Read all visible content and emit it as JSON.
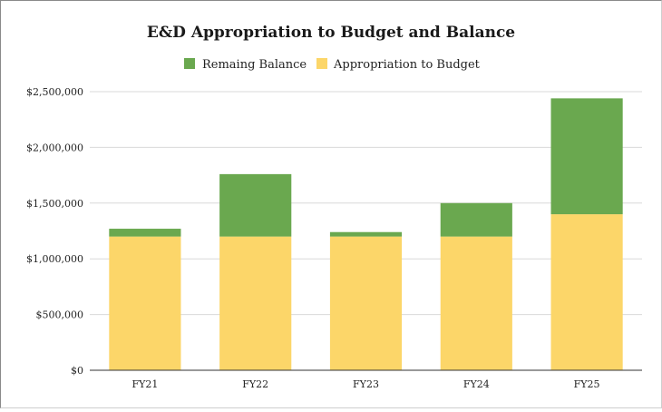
{
  "chart_data": {
    "type": "bar",
    "stacked": true,
    "title": "E&D Appropriation to Budget and Balance",
    "xlabel": "",
    "ylabel": "",
    "categories": [
      "FY21",
      "FY22",
      "FY23",
      "FY24",
      "FY25"
    ],
    "series": [
      {
        "name": "Appropriation to Budget",
        "color": "#fcd669",
        "values": [
          1200000,
          1200000,
          1200000,
          1200000,
          1400000
        ]
      },
      {
        "name": "Remaing Balance",
        "color": "#6aa84f",
        "values": [
          70000,
          560000,
          40000,
          300000,
          1040000
        ]
      }
    ],
    "legend_order": [
      "Remaing Balance",
      "Appropriation to Budget"
    ],
    "legend_position": "top",
    "ylim": [
      0,
      2500000
    ],
    "yticks": [
      0,
      500000,
      1000000,
      1500000,
      2000000,
      2500000
    ],
    "ytick_labels": [
      "$0",
      "$500,000",
      "$1,000,000",
      "$1,500,000",
      "$2,000,000",
      "$2,500,000"
    ],
    "grid": true
  }
}
